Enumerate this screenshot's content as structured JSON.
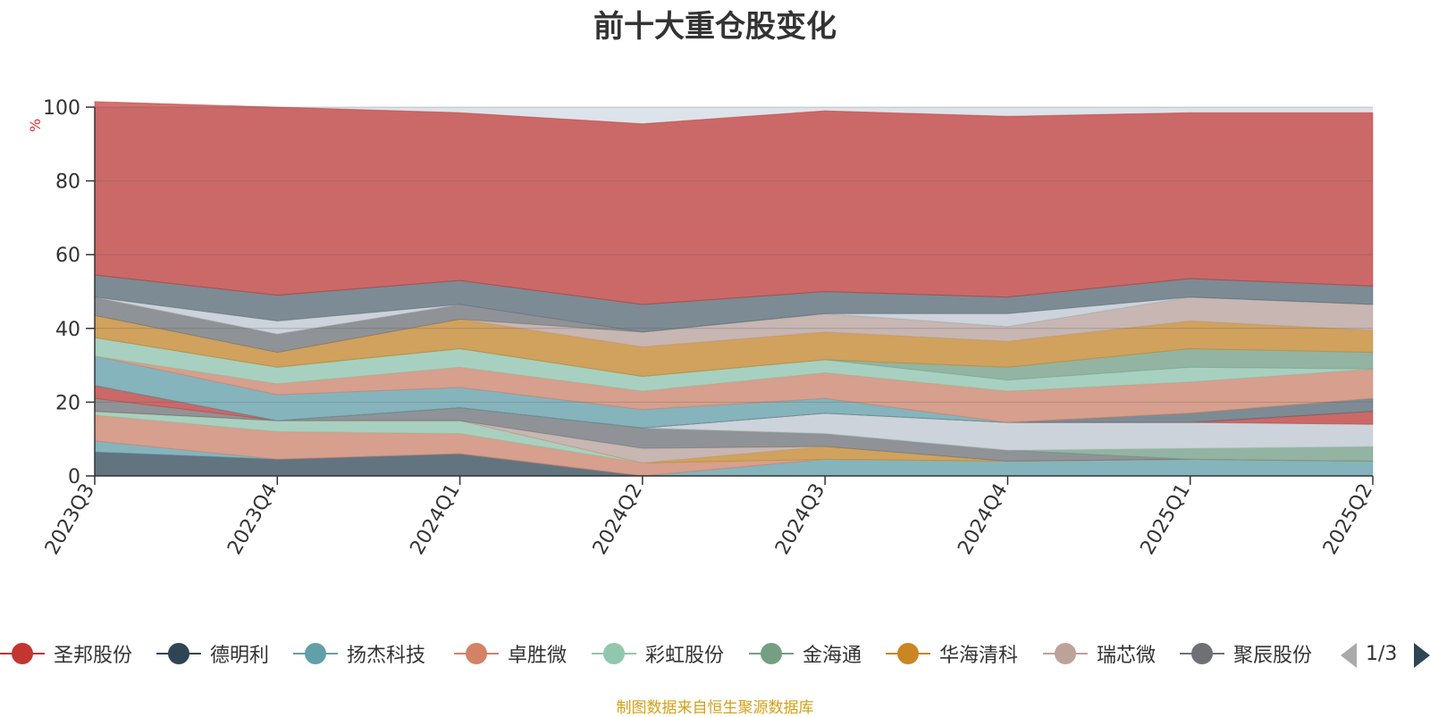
{
  "title": "前十大重仓股变化",
  "source": "制图数据来自恒生聚源数据库",
  "pager": {
    "text": "1/3"
  },
  "chart_data": {
    "type": "area",
    "stacked": true,
    "ylabel": "%",
    "ylim": [
      0,
      100
    ],
    "yticks": [
      0,
      20,
      40,
      60,
      80,
      100
    ],
    "categories": [
      "2023Q3",
      "2023Q4",
      "2024Q1",
      "2024Q2",
      "2024Q3",
      "2024Q4",
      "2025Q1",
      "2025Q2"
    ],
    "grid": true,
    "series": [
      {
        "name": "德明利",
        "color": "#2f4554",
        "values": [
          6.5,
          4.5,
          6.0,
          0,
          0,
          0,
          0,
          0
        ]
      },
      {
        "name": "扬杰科技",
        "color": "#61a0a8",
        "values": [
          3.0,
          0,
          0,
          0,
          4.5,
          4.0,
          4.5,
          4.0
        ]
      },
      {
        "name": "卓胜微",
        "color": "#d48265",
        "values": [
          7.0,
          7.5,
          5.5,
          3.5,
          0,
          0,
          0,
          0
        ]
      },
      {
        "name": "彩虹股份",
        "color": "#91c7ae",
        "values": [
          1.0,
          3.0,
          3.5,
          0,
          0,
          0,
          0,
          0
        ]
      },
      {
        "name": "华海清科",
        "color": "#ca8622",
        "values": [
          0,
          0,
          0,
          0,
          3.5,
          0,
          0,
          0
        ]
      },
      {
        "name": "瑞芯微",
        "color": "#bda29a",
        "values": [
          0,
          0,
          0,
          4.0,
          0,
          0,
          0,
          0
        ]
      },
      {
        "name": "聚辰股份",
        "color": "#6e7074",
        "values": [
          3.5,
          0,
          3.5,
          5.5,
          3.5,
          3.0,
          0,
          0
        ]
      },
      {
        "name": "金海通",
        "color": "#749f83",
        "values": [
          0,
          0,
          0,
          0,
          0,
          0,
          3.0,
          4.0
        ]
      },
      {
        "name": "other series",
        "color": "#c4ccd3",
        "values": [
          0,
          0,
          0,
          0,
          5.5,
          7.5,
          7.0,
          6.0
        ]
      },
      {
        "name": "圣邦股份",
        "color": "#c23531",
        "values": [
          3.5,
          0,
          0,
          0,
          0,
          0,
          0,
          3.5
        ]
      },
      {
        "name": "other series",
        "color": "#546570",
        "values": [
          0,
          0,
          0,
          0,
          0,
          0,
          2.5,
          3.5
        ]
      },
      {
        "name": "扬杰科技",
        "color": "#61a0a8",
        "values": [
          8.0,
          7.0,
          5.5,
          5.0,
          4.0,
          0,
          0,
          0
        ]
      },
      {
        "name": "卓胜微",
        "color": "#d48265",
        "values": [
          0,
          3.0,
          5.5,
          5.0,
          7.0,
          8.5,
          8.5,
          8.0
        ]
      },
      {
        "name": "彩虹股份",
        "color": "#91c7ae",
        "values": [
          5.0,
          4.5,
          5.0,
          4.0,
          3.5,
          3.0,
          4.0,
          0
        ]
      },
      {
        "name": "金海通",
        "color": "#749f83",
        "values": [
          0,
          0,
          0,
          0,
          0,
          3.5,
          5.0,
          4.5
        ]
      },
      {
        "name": "华海清科",
        "color": "#ca8622",
        "values": [
          6.0,
          4.0,
          8.0,
          8.0,
          7.5,
          7.0,
          7.5,
          6.0
        ]
      },
      {
        "name": "瑞芯微",
        "color": "#bda29a",
        "values": [
          0,
          0,
          0,
          4.0,
          5.0,
          4.0,
          6.5,
          7.0
        ]
      },
      {
        "name": "聚辰股份",
        "color": "#6e7074",
        "values": [
          5.0,
          5.0,
          4.0,
          0,
          0,
          0,
          0,
          0
        ]
      },
      {
        "name": "other series",
        "color": "#c4ccd3",
        "values": [
          0,
          3.5,
          0,
          0,
          0,
          3.5,
          0,
          0
        ]
      },
      {
        "name": "other series",
        "color": "#546570",
        "values": [
          6.0,
          7.0,
          6.5,
          7.5,
          6.0,
          4.5,
          5.0,
          5.0
        ]
      },
      {
        "name": "圣邦股份",
        "color": "#c23531",
        "values": [
          47.0,
          51.0,
          45.5,
          49.0,
          49.0,
          49.0,
          45.0,
          47.0
        ]
      }
    ]
  },
  "legend": [
    {
      "name": "圣邦股份",
      "color": "#c23531"
    },
    {
      "name": "德明利",
      "color": "#2f4554"
    },
    {
      "name": "扬杰科技",
      "color": "#61a0a8"
    },
    {
      "name": "卓胜微",
      "color": "#d48265"
    },
    {
      "name": "彩虹股份",
      "color": "#91c7ae"
    },
    {
      "name": "金海通",
      "color": "#749f83"
    },
    {
      "name": "华海清科",
      "color": "#ca8622"
    },
    {
      "name": "瑞芯微",
      "color": "#bda29a"
    },
    {
      "name": "聚辰股份",
      "color": "#6e7074"
    }
  ]
}
